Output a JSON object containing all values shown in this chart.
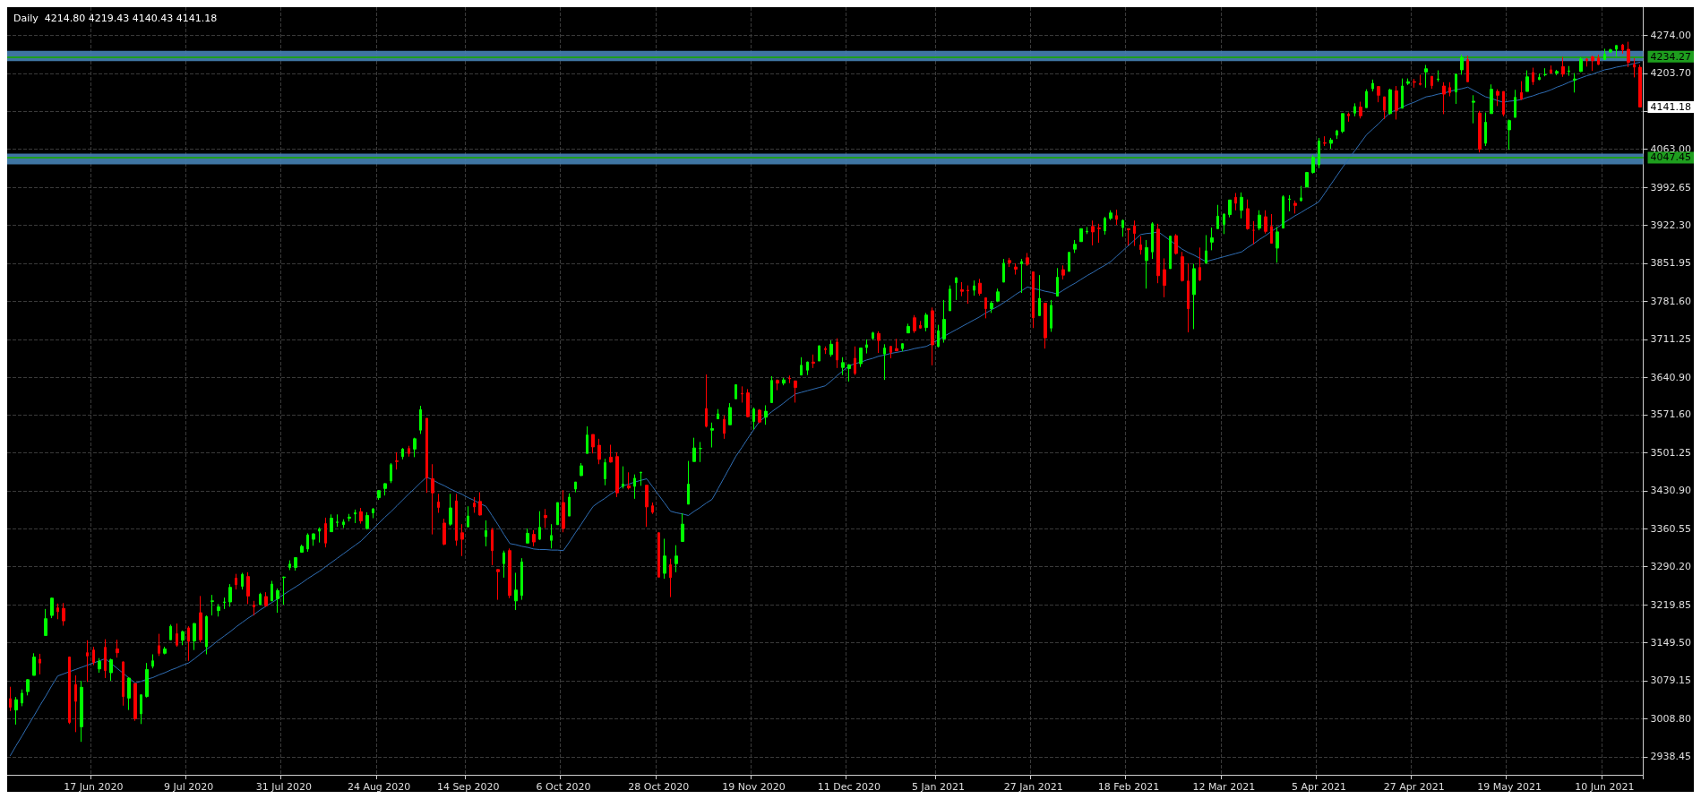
{
  "chart_data": {
    "type": "candlestick",
    "title": "Daily  4214.80 4219.43 4140.43 4141.18",
    "categories": [
      null,
      null,
      null,
      null,
      null,
      null,
      null,
      null,
      null,
      null,
      null,
      null,
      null,
      null,
      "17 Jun 2020",
      null,
      null,
      null,
      null,
      null,
      null,
      null,
      null,
      null,
      null,
      null,
      null,
      null,
      null,
      null,
      "9 Jul 2020",
      null,
      null,
      null,
      null,
      null,
      null,
      null,
      null,
      null,
      null,
      null,
      null,
      null,
      null,
      null,
      "31 Jul 2020",
      null,
      null,
      null,
      null,
      null,
      null,
      null,
      null,
      null,
      null,
      null,
      null,
      null,
      null,
      null,
      "24 Aug 2020",
      null,
      null,
      null,
      null,
      null,
      null,
      null,
      null,
      null,
      null,
      null,
      null,
      null,
      null,
      "14 Sep 2020",
      null,
      null,
      null,
      null,
      null,
      null,
      null,
      null,
      null,
      null,
      null,
      null,
      null,
      null,
      null,
      "6 Oct 2020",
      null,
      null,
      null,
      null,
      null,
      null,
      null,
      null,
      null,
      null,
      null,
      null,
      null,
      null,
      null,
      "28 Oct 2020",
      null,
      null,
      null,
      null,
      null,
      null,
      null,
      null,
      null,
      null,
      null,
      null,
      null,
      null,
      null,
      "19 Nov 2020",
      null,
      null,
      null,
      null,
      null,
      null,
      null,
      null,
      null,
      null,
      null,
      null,
      null,
      null,
      null,
      "11 Dec 2020",
      null,
      null,
      null,
      null,
      null,
      null,
      null,
      null,
      null,
      null,
      null,
      null,
      null,
      null,
      "5 Jan 2021",
      null,
      null,
      null,
      null,
      null,
      null,
      null,
      null,
      null,
      null,
      null,
      null,
      null,
      null,
      null,
      "27 Jan 2021",
      null,
      null,
      null,
      null,
      null,
      null,
      null,
      null,
      null,
      null,
      null,
      null,
      null,
      null,
      null,
      "18 Feb 2021",
      null,
      null,
      null,
      null,
      null,
      null,
      null,
      null,
      null,
      null,
      null,
      null,
      null,
      null,
      null,
      "12 Mar 2021",
      null,
      null,
      null,
      null,
      null,
      null,
      null,
      null,
      null,
      null,
      null,
      null,
      null,
      null,
      null,
      "5 Apr 2021",
      null,
      null,
      null,
      null,
      null,
      null,
      null,
      null,
      null,
      null,
      null,
      null,
      null,
      null,
      null,
      "27 Apr 2021",
      null,
      null,
      null,
      null,
      null,
      null,
      null,
      null,
      null,
      null,
      null,
      null,
      null,
      null,
      null,
      "19 May 2021",
      null,
      null,
      null,
      null,
      null,
      null,
      null,
      null,
      null,
      null,
      null,
      null,
      null,
      null,
      null,
      "10 Jun 2021",
      null,
      null,
      null,
      null,
      null,
      null
    ],
    "colors": [
      "#ff0000",
      "#00ff00",
      "#00ff00",
      "#00ff00",
      "#00ff00",
      "#ff0000",
      "#00ff00",
      "#00ff00",
      "#ff0000",
      "#ff0000",
      "#ff0000",
      "#ff0000",
      "#00ff00",
      "#ff0000",
      "#ff0000",
      "#00ff00",
      "#ff0000",
      "#00ff00",
      "#ff0000",
      "#ff0000",
      "#00ff00",
      "#ff0000",
      "#00ff00",
      "#00ff00",
      "#00ff00",
      "#ff0000",
      "#00ff00",
      "#00ff00",
      "#ff0000",
      "#00ff00",
      "#ff0000",
      "#00ff00",
      "#ff0000",
      "#00ff00",
      "#00ff00",
      "#00ff00",
      "#00ff00",
      "#00ff00",
      "#ff0000",
      "#00ff00",
      "#ff0000",
      "#ff0000",
      "#00ff00",
      "#ff0000",
      "#00ff00",
      "#00ff00",
      "#00ff00",
      "#00ff00",
      "#00ff00",
      "#00ff00",
      "#00ff00",
      "#00ff00",
      "#00ff00",
      "#ff0000",
      "#00ff00",
      "#00ff00",
      "#00ff00",
      "#00ff00",
      "#00ff00",
      "#ff0000",
      "#00ff00",
      "#00ff00",
      "#00ff00",
      "#00ff00",
      "#00ff00",
      "#ff0000",
      "#00ff00",
      "#ff0000",
      "#00ff00",
      "#00ff00",
      "#ff0000",
      "#ff0000",
      "#ff0000",
      "#ff0000",
      "#00ff00",
      "#ff0000",
      "#ff0000",
      "#00ff00",
      "#ff0000",
      "#ff0000",
      "#00ff00",
      "#ff0000",
      "#ff0000",
      "#00ff00",
      "#ff0000",
      "#00ff00",
      "#00ff00",
      "#00ff00",
      "#ff0000",
      "#00ff00",
      "#ff0000",
      "#00ff00",
      "#00ff00",
      "#ff0000",
      "#00ff00",
      "#00ff00",
      "#00ff00",
      "#00ff00",
      "#ff0000",
      "#ff0000",
      "#00ff00",
      "#ff0000",
      "#ff0000",
      "#00ff00",
      "#ff0000",
      "#00ff00",
      "#00ff00",
      "#ff0000",
      "#ff0000",
      "#ff0000",
      "#00ff00",
      "#ff0000",
      "#00ff00",
      "#00ff00",
      "#00ff00",
      "#00ff00",
      "#00ff00",
      "#ff0000",
      "#00ff00",
      "#00ff00",
      "#ff0000",
      "#00ff00",
      "#00ff00",
      "#ff0000",
      "#ff0000",
      "#00ff00",
      "#ff0000",
      "#00ff00",
      "#00ff00",
      "#ff0000",
      "#00ff00",
      "#ff0000",
      "#ff0000",
      "#00ff00",
      "#00ff00",
      "#ff0000",
      "#00ff00",
      "#ff0000",
      "#00ff00",
      "#ff0000",
      "#00ff00",
      "#00ff00",
      "#ff0000",
      "#00ff00",
      "#00ff00",
      "#00ff00",
      "#ff0000",
      "#00ff00",
      "#ff0000",
      "#ff0000",
      "#00ff00",
      "#00ff00",
      "#ff0000",
      "#ff0000",
      "#00ff00",
      "#ff0000",
      "#00ff00",
      "#00ff00",
      "#00ff00",
      "#00ff00",
      "#ff0000",
      "#ff0000",
      "#00ff00",
      "#ff0000",
      "#ff0000",
      "#00ff00",
      "#00ff00",
      "#00ff00",
      "#ff0000",
      "#ff0000",
      "#00ff00",
      "#ff0000",
      "#ff0000",
      "#00ff00",
      "#ff0000",
      "#00ff00",
      "#00ff00",
      "#ff0000",
      "#00ff00",
      "#00ff00",
      "#00ff00",
      "#00ff00",
      "#ff0000",
      "#ff0000",
      "#00ff00",
      "#00ff00",
      "#ff0000",
      "#00ff00",
      "#ff0000",
      "#ff0000",
      "#ff0000",
      "#00ff00",
      "#00ff00",
      "#ff0000",
      "#ff0000",
      "#00ff00",
      "#ff0000",
      "#ff0000",
      "#ff0000",
      "#00ff00",
      "#ff0000",
      "#00ff00",
      "#00ff00",
      "#00ff00",
      "#00ff00",
      "#00ff00",
      "#ff0000",
      "#00ff00",
      "#ff0000",
      "#ff0000",
      "#00ff00",
      "#ff0000",
      "#ff0000",
      "#00ff00",
      "#00ff00",
      "#00ff00",
      "#ff0000",
      "#00ff00",
      "#00ff00",
      "#00ff00",
      "#00ff00",
      "#ff0000",
      "#00ff00",
      "#00ff00",
      "#00ff00",
      "#ff0000",
      "#00ff00",
      "#ff0000",
      "#00ff00",
      "#00ff00",
      "#ff0000",
      "#ff0000",
      "#00ff00",
      "#ff0000",
      "#00ff00",
      "#00ff00",
      "#ff0000",
      "#ff0000",
      "#00ff00",
      "#ff0000",
      "#00ff00",
      "#ff0000",
      "#ff0000",
      "#00ff00",
      "#00ff00",
      "#ff0000",
      "#00ff00",
      "#ff0000",
      "#00ff00",
      "#00ff00",
      "#ff0000",
      "#ff0000",
      "#00ff00",
      "#00ff00",
      "#ff0000",
      "#00ff00",
      "#ff0000",
      "#00ff00",
      "#00ff00",
      "#ff0000",
      "#00ff00",
      "#ff0000",
      "#00ff00",
      "#00ff00",
      "#00ff00",
      "#ff0000",
      "#ff0000",
      "#ff0000",
      "#00ff00",
      "#00ff00",
      "#00ff00",
      "#ff0000",
      "#ff0000",
      "#ff0000",
      "#ff0000"
    ],
    "ohlc": [
      [
        3046,
        3068,
        3023,
        3030
      ],
      [
        3025,
        3049,
        2998,
        3044
      ],
      [
        3038,
        3063,
        3032,
        3056
      ],
      [
        3059,
        3082,
        3052,
        3081
      ],
      [
        3089,
        3130,
        3089,
        3123
      ],
      [
        3119,
        3129,
        3091,
        3112
      ],
      [
        3163,
        3212,
        3163,
        3194
      ],
      [
        3200,
        3233,
        3195,
        3232
      ],
      [
        3214,
        3222,
        3193,
        3207
      ],
      [
        3213,
        3223,
        3181,
        3190
      ],
      [
        3123,
        3124,
        2999,
        3002
      ],
      [
        3072,
        3089,
        2984,
        3041
      ],
      [
        2994,
        3079,
        2966,
        3067
      ],
      [
        3131,
        3154,
        3077,
        3125
      ],
      [
        3136,
        3142,
        3108,
        3113
      ],
      [
        3101,
        3121,
        3094,
        3115
      ],
      [
        3141,
        3156,
        3084,
        3098
      ],
      [
        3094,
        3120,
        3079,
        3118
      ],
      [
        3138,
        3155,
        3122,
        3131
      ],
      [
        3114,
        3115,
        3033,
        3050
      ],
      [
        3047,
        3086,
        3025,
        3084
      ],
      [
        3074,
        3074,
        3005,
        3009
      ],
      [
        3018,
        3054,
        2999,
        3053
      ],
      [
        3050,
        3112,
        3048,
        3100
      ],
      [
        3106,
        3128,
        3102,
        3116
      ],
      [
        3144,
        3166,
        3125,
        3130
      ],
      [
        3130,
        3142,
        3128,
        3138
      ],
      [
        3155,
        3183,
        3155,
        3180
      ],
      [
        3166,
        3185,
        3142,
        3145
      ],
      [
        3154,
        3172,
        3145,
        3170
      ],
      [
        3177,
        3180,
        3116,
        3152
      ],
      [
        3153,
        3186,
        3136,
        3185
      ],
      [
        3205,
        3236,
        3150,
        3155
      ],
      [
        3142,
        3200,
        3128,
        3198
      ],
      [
        3226,
        3238,
        3200,
        3227
      ],
      [
        3209,
        3221,
        3198,
        3216
      ],
      [
        3224,
        3233,
        3212,
        3225
      ],
      [
        3225,
        3258,
        3216,
        3252
      ],
      [
        3269,
        3277,
        3248,
        3257
      ],
      [
        3254,
        3279,
        3248,
        3276
      ],
      [
        3272,
        3280,
        3221,
        3236
      ],
      [
        3219,
        3227,
        3200,
        3216
      ],
      [
        3220,
        3242,
        3220,
        3239
      ],
      [
        3235,
        3243,
        3216,
        3218
      ],
      [
        3227,
        3264,
        3227,
        3258
      ],
      [
        3231,
        3250,
        3205,
        3246
      ],
      [
        3270,
        3272,
        3220,
        3271
      ],
      [
        3289,
        3302,
        3284,
        3295
      ],
      [
        3289,
        3307,
        3283,
        3307
      ],
      [
        3317,
        3331,
        3316,
        3328
      ],
      [
        3323,
        3352,
        3318,
        3349
      ],
      [
        3341,
        3352,
        3329,
        3351
      ],
      [
        3356,
        3363,
        3335,
        3360
      ],
      [
        3370,
        3381,
        3326,
        3334
      ],
      [
        3355,
        3387,
        3355,
        3380
      ],
      [
        3372,
        3387,
        3364,
        3373
      ],
      [
        3368,
        3378,
        3362,
        3373
      ],
      [
        3380,
        3388,
        3374,
        3382
      ],
      [
        3388,
        3396,
        3371,
        3390
      ],
      [
        3392,
        3399,
        3370,
        3375
      ],
      [
        3361,
        3391,
        3359,
        3385
      ],
      [
        3390,
        3399,
        3380,
        3397
      ],
      [
        3418,
        3432,
        3414,
        3431
      ],
      [
        3435,
        3445,
        3422,
        3444
      ],
      [
        3449,
        3482,
        3445,
        3479
      ],
      [
        3486,
        3502,
        3470,
        3485
      ],
      [
        3494,
        3510,
        3489,
        3508
      ],
      [
        3509,
        3514,
        3494,
        3500
      ],
      [
        3508,
        3529,
        3493,
        3527
      ],
      [
        3543,
        3588,
        3536,
        3581
      ],
      [
        3565,
        3565,
        3427,
        3455
      ],
      [
        3453,
        3480,
        3350,
        3427
      ],
      [
        3410,
        3425,
        3390,
        3400
      ],
      [
        3371,
        3379,
        3330,
        3332
      ],
      [
        3369,
        3425,
        3366,
        3399
      ],
      [
        3412,
        3425,
        3329,
        3339
      ],
      [
        3353,
        3369,
        3310,
        3341
      ],
      [
        3364,
        3402,
        3364,
        3384
      ],
      [
        3408,
        3419,
        3390,
        3401
      ],
      [
        3411,
        3428,
        3385,
        3386
      ],
      [
        3346,
        3376,
        3328,
        3357
      ],
      [
        3358,
        3362,
        3293,
        3320
      ],
      [
        3285,
        3286,
        3229,
        3281
      ],
      [
        3296,
        3320,
        3270,
        3316
      ],
      [
        3320,
        3324,
        3232,
        3237
      ],
      [
        3227,
        3279,
        3210,
        3247
      ],
      [
        3237,
        3306,
        3229,
        3299
      ],
      [
        3334,
        3361,
        3334,
        3352
      ],
      [
        3350,
        3358,
        3328,
        3336
      ],
      [
        3341,
        3393,
        3340,
        3363
      ],
      [
        3385,
        3397,
        3362,
        3381
      ],
      [
        3339,
        3369,
        3324,
        3348
      ],
      [
        3368,
        3409,
        3368,
        3409
      ],
      [
        3409,
        3432,
        3354,
        3361
      ],
      [
        3384,
        3426,
        3384,
        3419
      ],
      [
        3434,
        3447,
        3428,
        3447
      ],
      [
        3459,
        3482,
        3458,
        3477
      ],
      [
        3500,
        3550,
        3500,
        3534
      ],
      [
        3535,
        3535,
        3500,
        3512
      ],
      [
        3515,
        3527,
        3480,
        3489
      ],
      [
        3453,
        3490,
        3441,
        3483
      ],
      [
        3493,
        3516,
        3483,
        3484
      ],
      [
        3494,
        3502,
        3419,
        3427
      ],
      [
        3439,
        3476,
        3435,
        3443
      ],
      [
        3440,
        3465,
        3433,
        3436
      ],
      [
        3439,
        3461,
        3416,
        3454
      ],
      [
        3464,
        3466,
        3440,
        3465
      ],
      [
        3441,
        3441,
        3364,
        3401
      ],
      [
        3403,
        3409,
        3388,
        3391
      ],
      [
        3353,
        3354,
        3271,
        3271
      ],
      [
        3278,
        3342,
        3268,
        3310
      ],
      [
        3294,
        3305,
        3234,
        3270
      ],
      [
        3296,
        3330,
        3280,
        3310
      ],
      [
        3337,
        3389,
        3337,
        3369
      ],
      [
        3406,
        3486,
        3406,
        3443
      ],
      [
        3485,
        3529,
        3485,
        3510
      ],
      [
        3509,
        3521,
        3484,
        3509
      ],
      [
        3583,
        3646,
        3548,
        3550
      ],
      [
        3543,
        3557,
        3511,
        3546
      ],
      [
        3564,
        3582,
        3564,
        3573
      ],
      [
        3563,
        3570,
        3527,
        3537
      ],
      [
        3553,
        3593,
        3553,
        3585
      ],
      [
        3601,
        3628,
        3601,
        3627
      ],
      [
        3611,
        3624,
        3594,
        3610
      ],
      [
        3612,
        3619,
        3567,
        3568
      ],
      [
        3559,
        3585,
        3544,
        3582
      ],
      [
        3580,
        3582,
        3556,
        3558
      ],
      [
        3567,
        3589,
        3553,
        3578
      ],
      [
        3594,
        3643,
        3594,
        3635
      ],
      [
        3635,
        3637,
        3617,
        3630
      ],
      [
        3630,
        3640,
        3626,
        3636
      ],
      [
        3639,
        3644,
        3630,
        3638
      ],
      [
        3634,
        3635,
        3594,
        3622
      ],
      [
        3645,
        3678,
        3645,
        3663
      ],
      [
        3654,
        3670,
        3645,
        3669
      ],
      [
        3669,
        3683,
        3658,
        3667
      ],
      [
        3671,
        3700,
        3671,
        3699
      ],
      [
        3694,
        3698,
        3684,
        3692
      ],
      [
        3683,
        3709,
        3679,
        3702
      ],
      [
        3706,
        3713,
        3658,
        3673
      ],
      [
        3659,
        3678,
        3645,
        3668
      ],
      [
        3657,
        3665,
        3633,
        3664
      ],
      [
        3676,
        3698,
        3645,
        3648
      ],
      [
        3666,
        3695,
        3660,
        3695
      ],
      [
        3696,
        3711,
        3685,
        3701
      ],
      [
        3713,
        3725,
        3710,
        3723
      ],
      [
        3722,
        3726,
        3686,
        3709
      ],
      [
        3684,
        3702,
        3636,
        3695
      ],
      [
        3698,
        3699,
        3676,
        3687
      ],
      [
        3694,
        3712,
        3689,
        3690
      ],
      [
        3694,
        3704,
        3689,
        3703
      ],
      [
        3723,
        3740,
        3723,
        3735
      ],
      [
        3751,
        3756,
        3723,
        3727
      ],
      [
        3737,
        3745,
        3731,
        3732
      ],
      [
        3733,
        3760,
        3726,
        3756
      ],
      [
        3764,
        3770,
        3663,
        3701
      ],
      [
        3698,
        3738,
        3696,
        3727
      ],
      [
        3712,
        3784,
        3705,
        3748
      ],
      [
        3764,
        3811,
        3764,
        3804
      ],
      [
        3816,
        3826,
        3784,
        3825
      ],
      [
        3803,
        3817,
        3791,
        3800
      ],
      [
        3802,
        3811,
        3777,
        3801
      ],
      [
        3802,
        3820,
        3792,
        3810
      ],
      [
        3815,
        3823,
        3792,
        3796
      ],
      [
        3788,
        3788,
        3750,
        3768
      ],
      [
        3768,
        3782,
        3760,
        3778
      ],
      [
        3782,
        3805,
        3780,
        3799
      ],
      [
        3817,
        3860,
        3817,
        3852
      ],
      [
        3857,
        3862,
        3845,
        3853
      ],
      [
        3845,
        3852,
        3831,
        3841
      ],
      [
        3851,
        3860,
        3797,
        3855
      ],
      [
        3862,
        3871,
        3847,
        3850
      ],
      [
        3836,
        3836,
        3732,
        3751
      ],
      [
        3755,
        3830,
        3755,
        3787
      ],
      [
        3778,
        3778,
        3694,
        3714
      ],
      [
        3732,
        3784,
        3725,
        3774
      ],
      [
        3791,
        3843,
        3791,
        3826
      ],
      [
        3840,
        3848,
        3822,
        3830
      ],
      [
        3837,
        3873,
        3837,
        3872
      ],
      [
        3878,
        3895,
        3871,
        3887
      ],
      [
        3892,
        3916,
        3892,
        3916
      ],
      [
        3910,
        3919,
        3906,
        3911
      ],
      [
        3920,
        3931,
        3885,
        3910
      ],
      [
        3917,
        3925,
        3890,
        3916
      ],
      [
        3912,
        3938,
        3905,
        3935
      ],
      [
        3935,
        3950,
        3932,
        3945
      ],
      [
        3940,
        3951,
        3923,
        3933
      ],
      [
        3918,
        3933,
        3901,
        3931
      ],
      [
        3916,
        3916,
        3885,
        3914
      ],
      [
        3921,
        3931,
        3884,
        3907
      ],
      [
        3886,
        3902,
        3868,
        3877
      ],
      [
        3857,
        3895,
        3805,
        3881
      ],
      [
        3873,
        3928,
        3860,
        3925
      ],
      [
        3915,
        3925,
        3815,
        3829
      ],
      [
        3840,
        3861,
        3789,
        3811
      ],
      [
        3842,
        3903,
        3842,
        3902
      ],
      [
        3903,
        3906,
        3868,
        3870
      ],
      [
        3864,
        3873,
        3818,
        3820
      ],
      [
        3819,
        3852,
        3724,
        3768
      ],
      [
        3794,
        3851,
        3730,
        3842
      ],
      [
        3844,
        3881,
        3819,
        3821
      ],
      [
        3852,
        3904,
        3852,
        3875
      ],
      [
        3891,
        3918,
        3876,
        3899
      ],
      [
        3916,
        3960,
        3916,
        3939
      ],
      [
        3924,
        3944,
        3906,
        3943
      ],
      [
        3942,
        3969,
        3937,
        3969
      ],
      [
        3974,
        3982,
        3950,
        3963
      ],
      [
        3950,
        3983,
        3935,
        3974
      ],
      [
        3953,
        3970,
        3914,
        3916
      ],
      [
        3913,
        3930,
        3887,
        3913
      ],
      [
        3917,
        3950,
        3913,
        3941
      ],
      [
        3938,
        3950,
        3907,
        3911
      ],
      [
        3920,
        3943,
        3889,
        3889
      ],
      [
        3880,
        3919,
        3853,
        3910
      ],
      [
        3917,
        3978,
        3917,
        3975
      ],
      [
        3970,
        3978,
        3948,
        3971
      ],
      [
        3963,
        3968,
        3944,
        3959
      ],
      [
        3968,
        3995,
        3966,
        3973
      ],
      [
        3993,
        4021,
        3993,
        4020
      ],
      [
        4020,
        4052,
        4018,
        4048
      ],
      [
        4034,
        4084,
        4028,
        4078
      ],
      [
        4075,
        4087,
        4069,
        4074
      ],
      [
        4074,
        4084,
        4064,
        4080
      ],
      [
        4089,
        4099,
        4082,
        4097
      ],
      [
        4096,
        4129,
        4093,
        4129
      ],
      [
        4125,
        4131,
        4114,
        4128
      ],
      [
        4130,
        4148,
        4124,
        4142
      ],
      [
        4141,
        4151,
        4120,
        4125
      ],
      [
        4140,
        4174,
        4140,
        4170
      ],
      [
        4175,
        4192,
        4170,
        4185
      ],
      [
        4179,
        4180,
        4150,
        4163
      ],
      [
        4160,
        4160,
        4119,
        4135
      ],
      [
        4129,
        4175,
        4127,
        4173
      ],
      [
        4171,
        4180,
        4118,
        4135
      ],
      [
        4139,
        4194,
        4139,
        4180
      ],
      [
        4185,
        4194,
        4182,
        4188
      ],
      [
        4188,
        4193,
        4177,
        4187
      ],
      [
        4185,
        4201,
        4181,
        4183
      ],
      [
        4206,
        4219,
        4177,
        4212
      ],
      [
        4198,
        4198,
        4175,
        4181
      ],
      [
        4192,
        4209,
        4188,
        4193
      ],
      [
        4180,
        4187,
        4128,
        4165
      ],
      [
        4177,
        4187,
        4161,
        4168
      ],
      [
        4169,
        4202,
        4147,
        4202
      ],
      [
        4210,
        4238,
        4201,
        4233
      ],
      [
        4229,
        4236,
        4188,
        4188
      ],
      [
        4150,
        4163,
        4111,
        4152
      ],
      [
        4130,
        4134,
        4057,
        4063
      ],
      [
        4074,
        4131,
        4069,
        4113
      ],
      [
        4129,
        4183,
        4129,
        4174
      ],
      [
        4170,
        4174,
        4143,
        4163
      ],
      [
        4170,
        4170,
        4124,
        4128
      ],
      [
        4099,
        4118,
        4062,
        4116
      ],
      [
        4122,
        4173,
        4122,
        4159
      ],
      [
        4168,
        4189,
        4154,
        4156
      ],
      [
        4170,
        4209,
        4170,
        4197
      ],
      [
        4205,
        4214,
        4182,
        4188
      ],
      [
        4192,
        4203,
        4191,
        4196
      ],
      [
        4201,
        4213,
        4198,
        4201
      ],
      [
        4210,
        4218,
        4203,
        4204
      ],
      [
        4204,
        4210,
        4200,
        4207
      ],
      [
        4216,
        4234,
        4197,
        4202
      ],
      [
        4207,
        4217,
        4199,
        4208
      ],
      [
        4191,
        4204,
        4168,
        4193
      ],
      [
        4207,
        4233,
        4206,
        4230
      ],
      [
        4230,
        4232,
        4216,
        4227
      ],
      [
        4234,
        4236,
        4208,
        4227
      ],
      [
        4232,
        4238,
        4219,
        4220
      ],
      [
        4229,
        4249,
        4229,
        4239
      ],
      [
        4243,
        4249,
        4241,
        4247
      ],
      [
        4248,
        4255,
        4235,
        4255
      ],
      [
        4256,
        4258,
        4240,
        4247
      ],
      [
        4248,
        4262,
        4215,
        4224
      ],
      [
        4220,
        4232,
        4196,
        4215
      ],
      [
        4214.8,
        4219.43,
        4140.43,
        4141.18
      ]
    ],
    "series": [
      {
        "type": "line",
        "color": "#2f6db3",
        "marker": "none",
        "values": [
          2940,
          2959,
          2977,
          2996,
          3014,
          3033,
          3051,
          3070,
          3088,
          3092,
          3096,
          3100,
          3104,
          3108,
          3112,
          3116,
          3120,
          3111,
          3102,
          3093,
          3084,
          3075,
          3078,
          3082,
          3085,
          3090,
          3094,
          3099,
          3103,
          3108,
          3112,
          3120,
          3129,
          3137,
          3145,
          3154,
          3162,
          3170,
          3179,
          3187,
          3195,
          3202,
          3210,
          3217,
          3224,
          3231,
          3239,
          3246,
          3253,
          3260,
          3268,
          3275,
          3282,
          3290,
          3298,
          3306,
          3314,
          3322,
          3330,
          3338,
          3349,
          3360,
          3371,
          3382,
          3392,
          3403,
          3414,
          3425,
          3435,
          3446,
          3456,
          3451,
          3445,
          3440,
          3434,
          3429,
          3424,
          3418,
          3413,
          3407,
          3402,
          3385,
          3368,
          3350,
          3333,
          3331,
          3328,
          3326,
          3323,
          3322,
          3322,
          3321,
          3321,
          3320,
          3336,
          3353,
          3369,
          3386,
          3402,
          3410,
          3417,
          3425,
          3432,
          3440,
          3443,
          3447,
          3450,
          3453,
          3438,
          3423,
          3408,
          3393,
          3390,
          3388,
          3385,
          3393,
          3400,
          3408,
          3415,
          3435,
          3455,
          3475,
          3495,
          3511,
          3528,
          3544,
          3560,
          3568,
          3577,
          3585,
          3593,
          3602,
          3610,
          3613,
          3616,
          3619,
          3622,
          3625,
          3634,
          3644,
          3653,
          3662,
          3666,
          3669,
          3673,
          3676,
          3680,
          3682,
          3685,
          3687,
          3689,
          3691,
          3694,
          3696,
          3698,
          3704,
          3710,
          3717,
          3723,
          3729,
          3735,
          3741,
          3747,
          3753,
          3760,
          3766,
          3772,
          3779,
          3786,
          3794,
          3801,
          3808,
          3805,
          3803,
          3800,
          3798,
          3795,
          3802,
          3809,
          3815,
          3822,
          3829,
          3835,
          3842,
          3848,
          3855,
          3865,
          3875,
          3885,
          3895,
          3905,
          3907,
          3908,
          3910,
          3902,
          3894,
          3886,
          3878,
          3872,
          3867,
          3861,
          3855,
          3858,
          3861,
          3864,
          3867,
          3870,
          3873,
          3881,
          3888,
          3896,
          3903,
          3911,
          3918,
          3926,
          3933,
          3940,
          3946,
          3953,
          3959,
          3966,
          3982,
          3998,
          4014,
          4030,
          4045,
          4060,
          4075,
          4090,
          4100,
          4110,
          4121,
          4131,
          4136,
          4141,
          4146,
          4150,
          4155,
          4160,
          4162,
          4165,
          4167,
          4170,
          4173,
          4175,
          4178,
          4172,
          4166,
          4160,
          4157,
          4153,
          4150,
          4152,
          4153,
          4155,
          4159,
          4162,
          4166,
          4169,
          4173,
          4178,
          4182,
          4187,
          4191,
          4195,
          4199,
          4202,
          4206,
          4210,
          4212,
          4215,
          4217,
          4219,
          4222,
          4224
        ]
      }
    ],
    "ylim": [
      2905,
      4326
    ],
    "yticks": [
      {
        "value": 2938.45,
        "label": "2938.45"
      },
      {
        "value": 3008.8,
        "label": "3008.80"
      },
      {
        "value": 3079.15,
        "label": "3079.15"
      },
      {
        "value": 3149.5,
        "label": "3149.50"
      },
      {
        "value": 3219.85,
        "label": "3219.85"
      },
      {
        "value": 3290.2,
        "label": "3290.20"
      },
      {
        "value": 3360.55,
        "label": "3360.55"
      },
      {
        "value": 3430.9,
        "label": "3430.90"
      },
      {
        "value": 3501.25,
        "label": "3501.25"
      },
      {
        "value": 3571.6,
        "label": "3571.60"
      },
      {
        "value": 3640.9,
        "label": "3640.90"
      },
      {
        "value": 3711.25,
        "label": "3711.25"
      },
      {
        "value": 3781.6,
        "label": "3781.60"
      },
      {
        "value": 3851.95,
        "label": "3851.95"
      },
      {
        "value": 3922.3,
        "label": "3922.30"
      },
      {
        "value": 3992.65,
        "label": "3992.65"
      },
      {
        "value": 4063,
        "label": "4063.00"
      },
      {
        "value": 4133.35,
        "label": null
      },
      {
        "value": 4203.7,
        "label": "4203.70"
      },
      {
        "value": 4274,
        "label": "4274.00"
      }
    ],
    "grid": true,
    "ref_lines": [
      {
        "axis": "y",
        "value": 4234.27,
        "label": "4234.27",
        "color": "#1e9e1e"
      },
      {
        "axis": "y",
        "value": 4047.45,
        "label": "4047.45",
        "color": "#1e9e1e"
      }
    ],
    "bands": [
      {
        "axis": "y",
        "from": 4226,
        "to": 4245,
        "color": "#4682b4"
      },
      {
        "axis": "y",
        "from": 4035,
        "to": 4055,
        "color": "#4682b4"
      }
    ],
    "annotations": [
      "4141.18"
    ]
  }
}
